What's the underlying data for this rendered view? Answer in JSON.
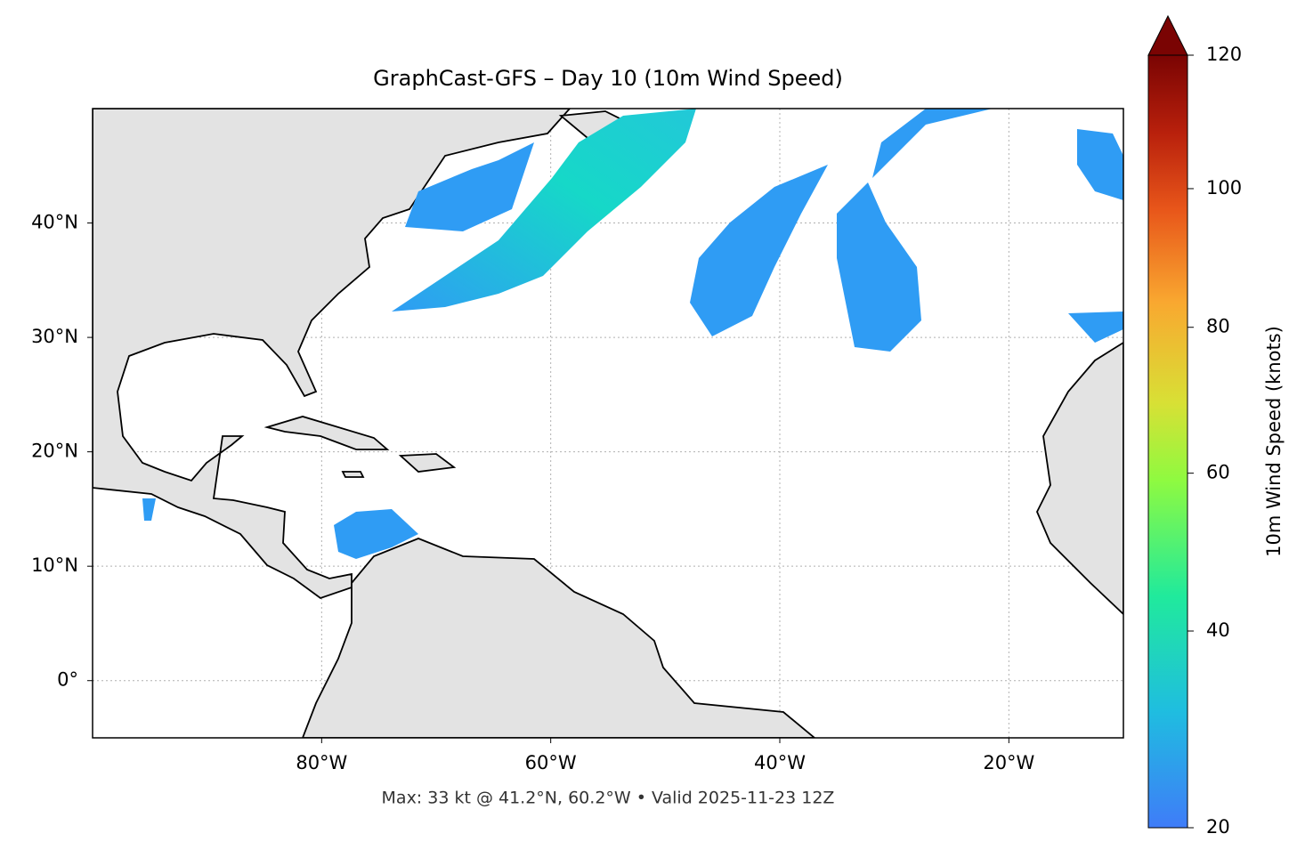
{
  "chart_data": {
    "type": "map",
    "title": "GraphCast-GFS – Day 10 (10m Wind Speed)",
    "xlim": [
      -100,
      -10
    ],
    "ylim": [
      -5,
      50
    ],
    "xticks": [
      {
        "value": -80,
        "label": "80°W"
      },
      {
        "value": -60,
        "label": "60°W"
      },
      {
        "value": -40,
        "label": "40°W"
      },
      {
        "value": -20,
        "label": "20°W"
      }
    ],
    "yticks": [
      {
        "value": 0,
        "label": "0°"
      },
      {
        "value": 10,
        "label": "10°N"
      },
      {
        "value": 20,
        "label": "20°N"
      },
      {
        "value": 30,
        "label": "30°N"
      },
      {
        "value": 40,
        "label": "40°N"
      }
    ],
    "grid": true,
    "annotation": "Max: 33 kt @ 41.2°N, 60.2°W • Valid 2025-11-23 12Z",
    "colorbar": {
      "label": "10m Wind Speed (knots)",
      "lim": [
        20,
        120
      ],
      "ticks": [
        20,
        40,
        60,
        80,
        100,
        120
      ]
    }
  }
}
